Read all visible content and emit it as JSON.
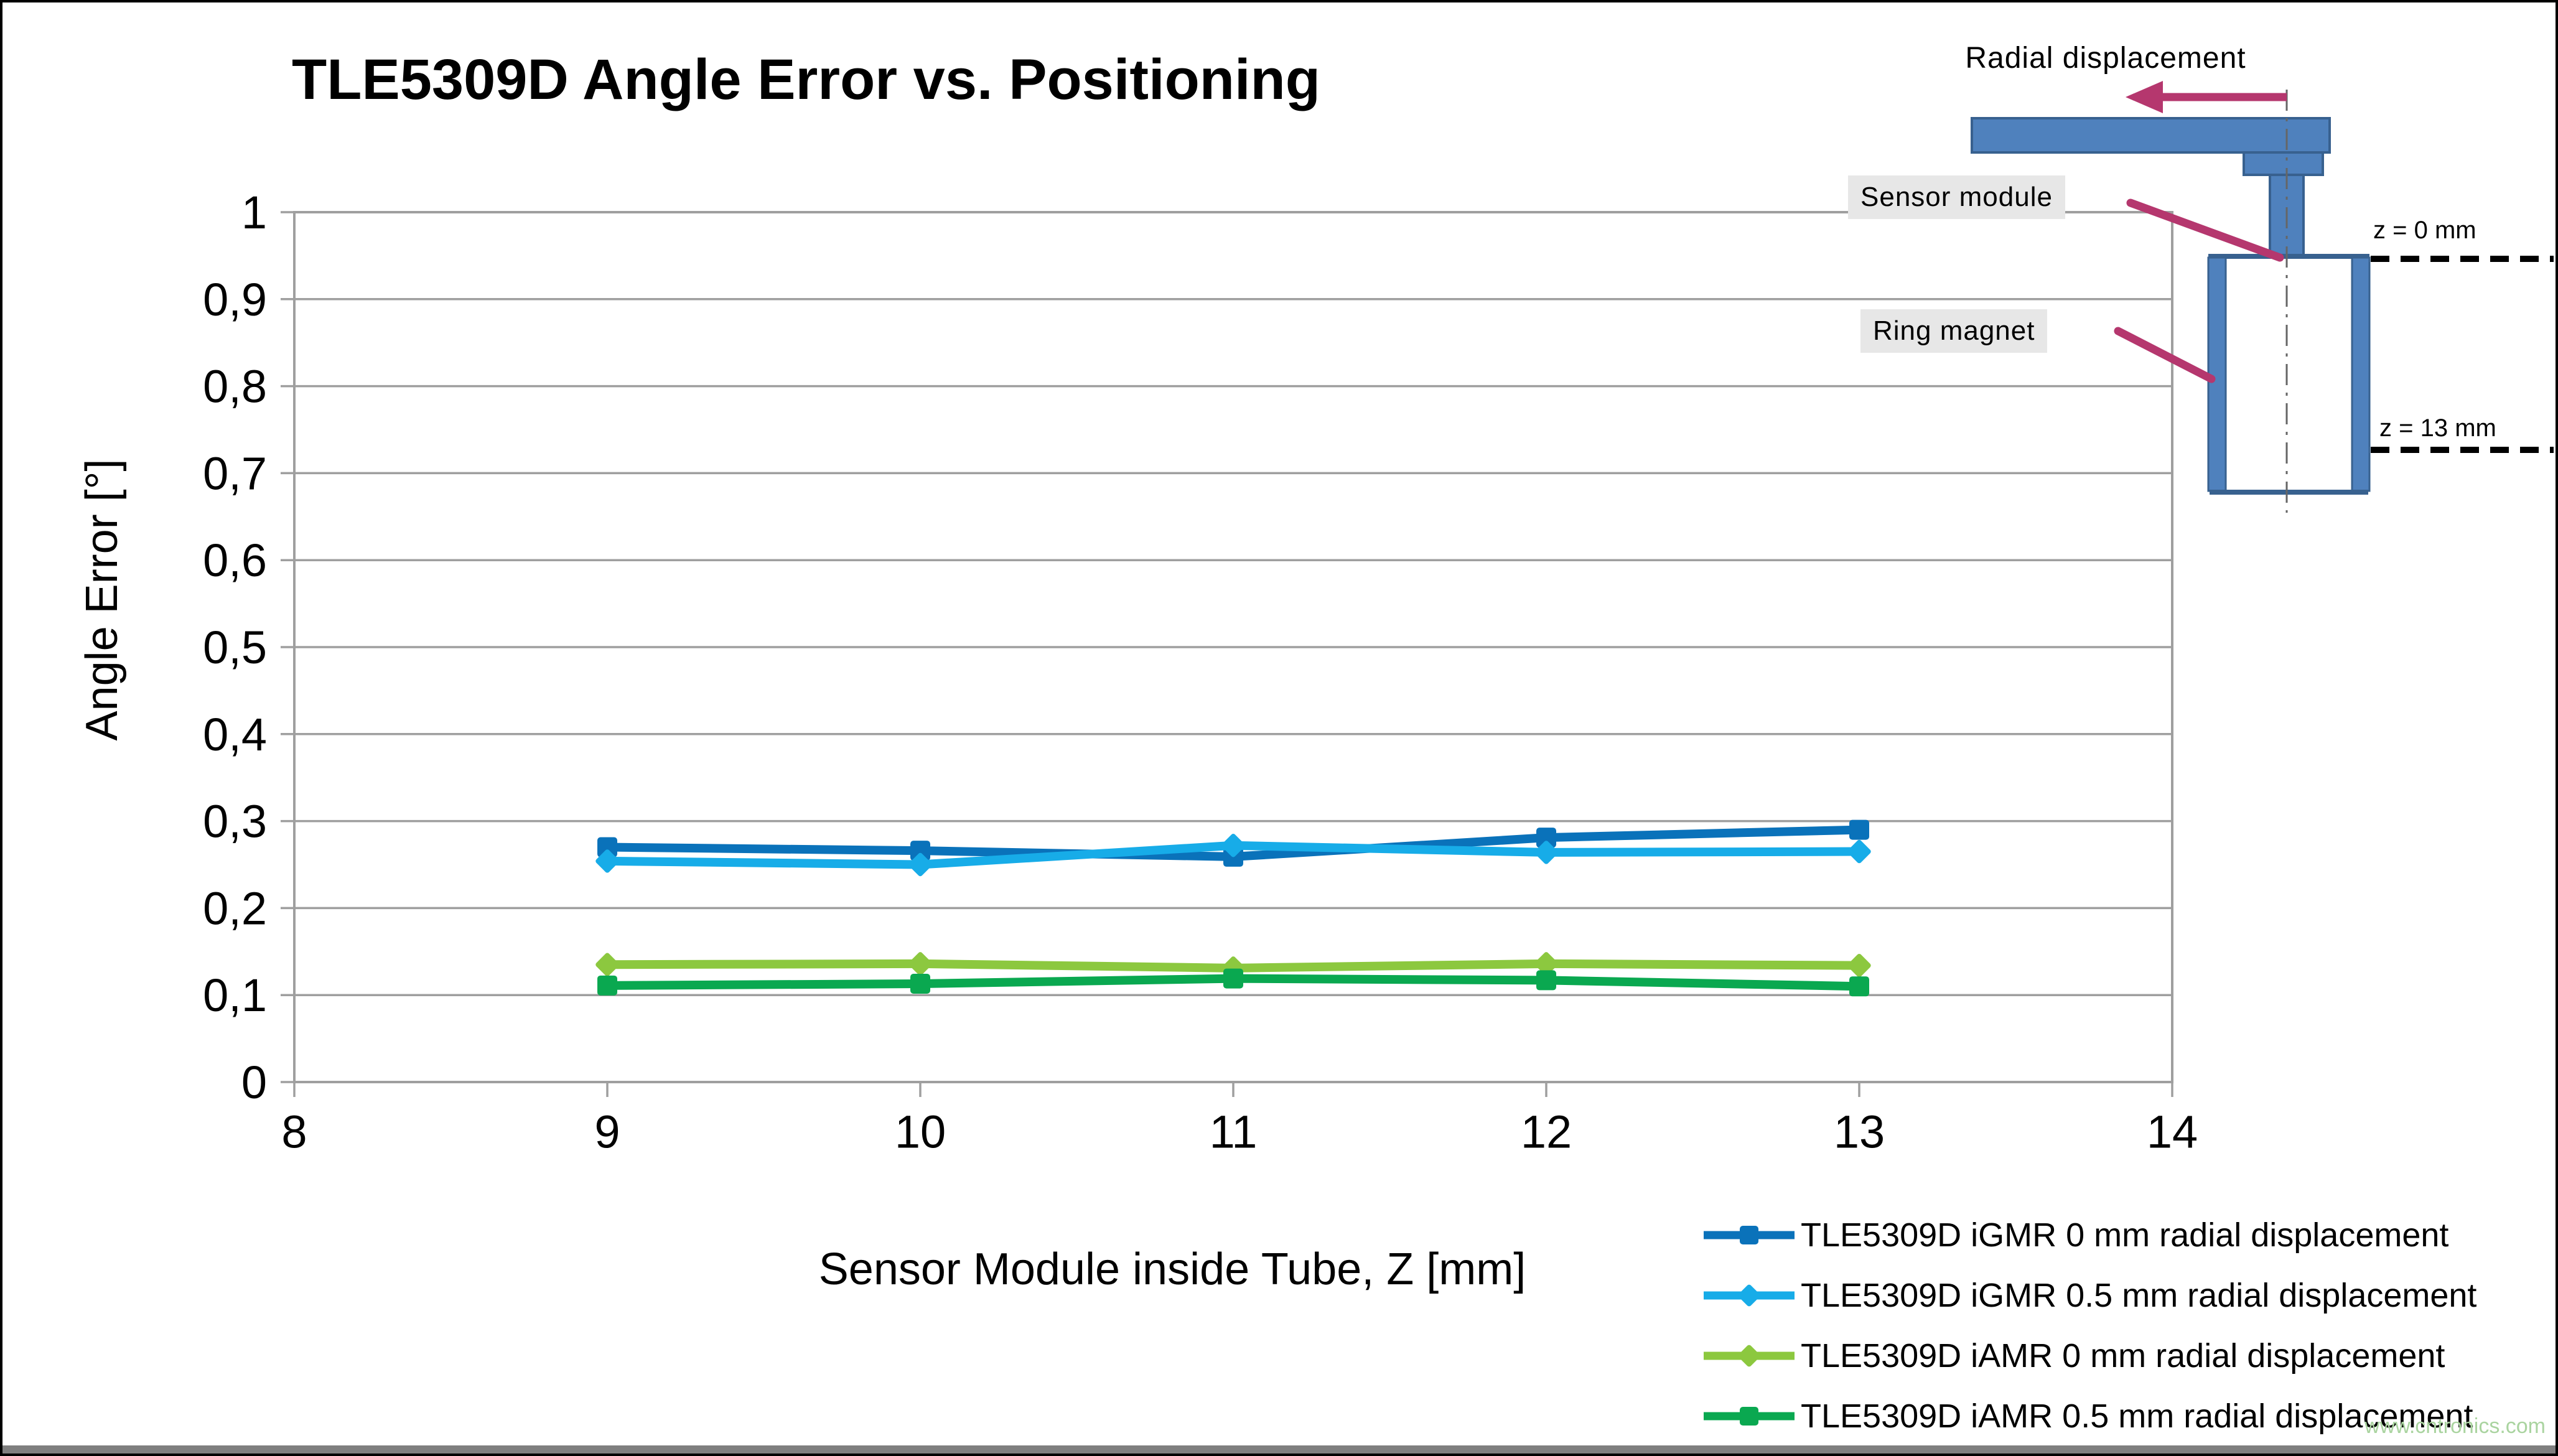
{
  "page": {
    "watermark": "www.cntronics.com"
  },
  "chart": {
    "title": "TLE5309D Angle Error vs. Positioning",
    "x_axis": {
      "title": "Sensor Module inside Tube, Z [mm]",
      "ticks": [
        8,
        9,
        10,
        11,
        12,
        13,
        14
      ]
    },
    "y_axis": {
      "title": "Angle Error [°]",
      "tick_labels": [
        "0",
        "0,1",
        "0,2",
        "0,3",
        "0,4",
        "0,5",
        "0,6",
        "0,7",
        "0,8",
        "0,9",
        "1"
      ]
    },
    "grid_color": "#9f9f9f"
  },
  "chart_data": {
    "type": "line",
    "title": "TLE5309D Angle Error vs. Positioning",
    "xlabel": "Sensor Module inside Tube, Z [mm]",
    "ylabel": "Angle Error [°]",
    "xlim": [
      8,
      14
    ],
    "ylim": [
      0,
      1
    ],
    "grid": "horizontal",
    "legend_position": "bottom-right",
    "x": [
      9,
      10,
      11,
      12,
      13
    ],
    "series": [
      {
        "name": "TLE5309D iGMR 0 mm radial displacement",
        "color": "#0a72ba",
        "marker": "square",
        "values": [
          0.27,
          0.266,
          0.259,
          0.281,
          0.29
        ]
      },
      {
        "name": "TLE5309D iGMR 0.5 mm radial displacement",
        "color": "#17ace8",
        "marker": "diamond",
        "values": [
          0.254,
          0.25,
          0.272,
          0.264,
          0.265
        ]
      },
      {
        "name": "TLE5309D iAMR 0 mm radial displacement",
        "color": "#8cc83f",
        "marker": "diamond",
        "values": [
          0.135,
          0.136,
          0.131,
          0.136,
          0.134
        ]
      },
      {
        "name": "TLE5309D iAMR 0.5 mm radial displacement",
        "color": "#0aa850",
        "marker": "square",
        "values": [
          0.111,
          0.113,
          0.119,
          0.117,
          0.11
        ]
      }
    ]
  },
  "inset": {
    "radial_displacement_label": "Radial displacement",
    "sensor_module_label": "Sensor module",
    "ring_magnet_label": "Ring magnet",
    "z0_label": "z = 0 mm",
    "z13_label": "z = 13 mm",
    "accent_color": "#b5376e",
    "shape_fill": "#4f81bd",
    "shape_border": "#38618f"
  }
}
